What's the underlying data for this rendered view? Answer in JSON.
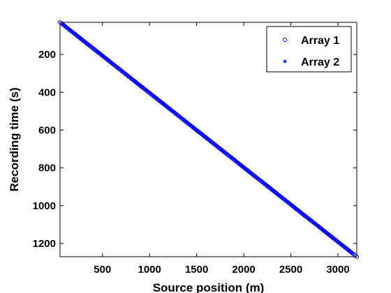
{
  "chart_data": {
    "type": "scatter",
    "xlabel": "Source position (m)",
    "ylabel": "Recording time (s)",
    "xlim": [
      50,
      3200
    ],
    "ylim": [
      30,
      1270
    ],
    "y_reversed": true,
    "grid": false,
    "legend_position": "top-right",
    "x_ticks": [
      500,
      1000,
      1500,
      2000,
      2500,
      3000
    ],
    "y_ticks": [
      200,
      400,
      600,
      800,
      1000,
      1200
    ],
    "marker_color": "#0000ff",
    "series": [
      {
        "name": "Array 1",
        "marker": "circle",
        "x_start": 50,
        "y_start": 30,
        "x_end": 3200,
        "y_end": 1270,
        "points": 190
      },
      {
        "name": "Array 2",
        "marker": "asterisk",
        "x_start": 80,
        "y_start": 40,
        "x_end": 3150,
        "y_end": 1250,
        "points": 180
      }
    ]
  }
}
